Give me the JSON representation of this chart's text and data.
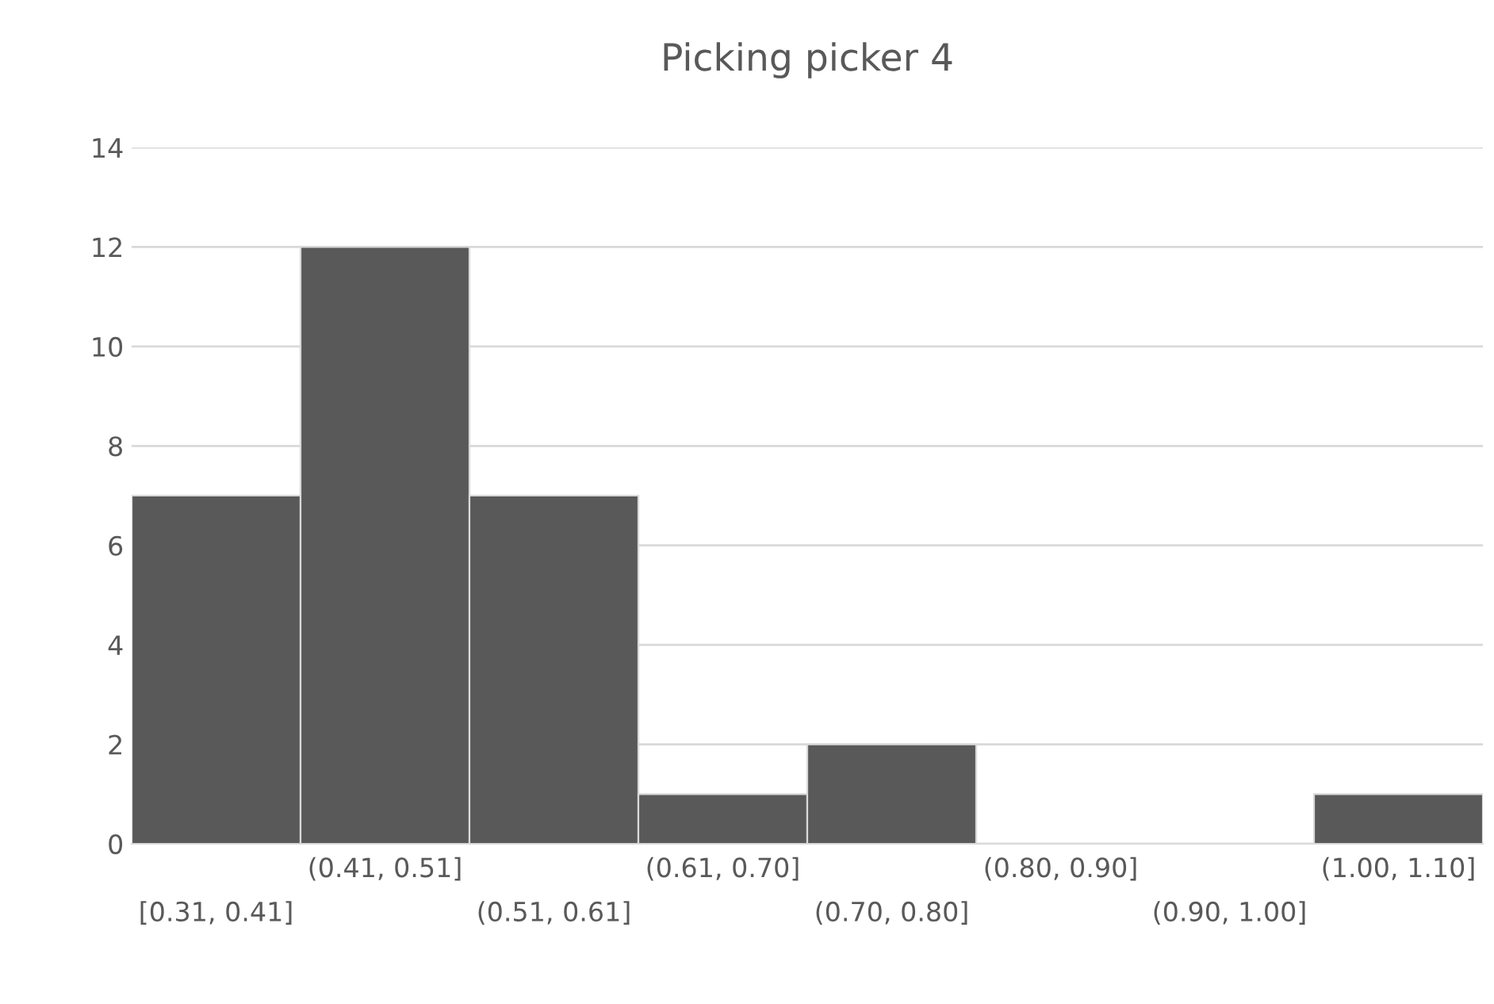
{
  "chart_data": {
    "type": "bar",
    "title": "Picking picker 4",
    "categories": [
      "[0.31, 0.41]",
      "(0.41, 0.51]",
      "(0.51, 0.61]",
      "(0.61, 0.70]",
      "(0.70, 0.80]",
      "(0.80, 0.90]",
      "(0.90, 1.00]",
      "(1.00, 1.10]"
    ],
    "values": [
      7,
      12,
      7,
      1,
      2,
      0,
      0,
      1
    ],
    "color": "#595959",
    "ylim": [
      0,
      14
    ],
    "yticks": [
      0,
      2,
      4,
      6,
      8,
      10,
      12,
      14
    ],
    "grid": "y",
    "legend": false
  }
}
